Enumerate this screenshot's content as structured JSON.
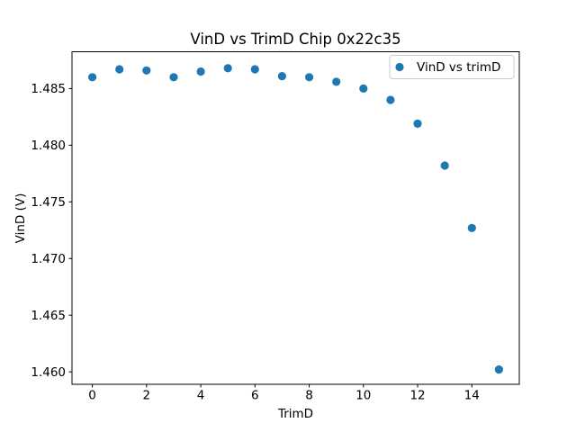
{
  "figure": {
    "background": "#ffffff"
  },
  "chart_data": {
    "type": "scatter",
    "title": "VinD vs TrimD Chip 0x22c35",
    "xlabel": "TrimD",
    "ylabel": "VinD (V)",
    "xlim": [
      -0.75,
      15.75
    ],
    "ylim": [
      1.4589,
      1.48825
    ],
    "xticks": [
      "0",
      "2",
      "4",
      "6",
      "8",
      "10",
      "12",
      "14"
    ],
    "yticks": [
      "1.460",
      "1.465",
      "1.470",
      "1.475",
      "1.480",
      "1.485"
    ],
    "grid": false,
    "legend": {
      "label": "VinD vs trimD",
      "position": "upper right"
    },
    "series": [
      {
        "name": "VinD vs trimD",
        "color": "#1f77b4",
        "marker": "circle",
        "x": [
          0,
          1,
          2,
          3,
          4,
          5,
          6,
          7,
          8,
          9,
          10,
          11,
          12,
          13,
          14,
          15
        ],
        "y": [
          1.486,
          1.4867,
          1.4866,
          1.486,
          1.4865,
          1.4868,
          1.4867,
          1.4861,
          1.486,
          1.4856,
          1.485,
          1.484,
          1.4819,
          1.4782,
          1.4727,
          1.4602
        ]
      }
    ]
  }
}
